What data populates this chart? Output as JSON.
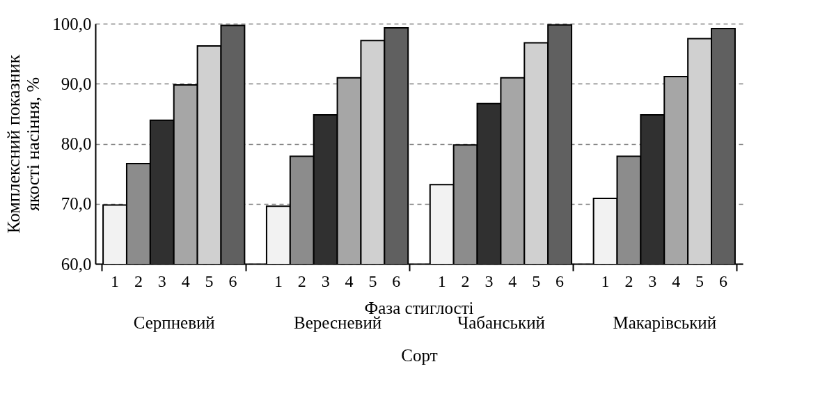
{
  "chart_data": {
    "type": "bar",
    "ylabel": "Комплексний показник якості насіння, %",
    "xlabel": "Сорт",
    "annotations": [
      "Фаза стиглості"
    ],
    "categories": [
      "Серпневий",
      "Вересневий",
      "Чабанський",
      "Макарівський"
    ],
    "series": [
      {
        "name": "1",
        "color": "#f2f2f2",
        "values": [
          69.8,
          69.6,
          73.2,
          70.9
        ]
      },
      {
        "name": "2",
        "color": "#8c8c8c",
        "values": [
          76.7,
          77.9,
          79.8,
          77.9
        ]
      },
      {
        "name": "3",
        "color": "#303030",
        "values": [
          83.9,
          84.8,
          86.7,
          84.8
        ]
      },
      {
        "name": "4",
        "color": "#a6a6a6",
        "values": [
          89.8,
          91.0,
          91.0,
          91.2
        ]
      },
      {
        "name": "5",
        "color": "#d0d0d0",
        "values": [
          96.3,
          97.2,
          96.8,
          97.5
        ]
      },
      {
        "name": "6",
        "color": "#606060",
        "values": [
          99.7,
          99.3,
          99.8,
          99.2
        ]
      }
    ],
    "ylim": [
      60,
      100
    ],
    "yticks": [
      {
        "value": 60,
        "label": "60,0"
      },
      {
        "value": 70,
        "label": "70,0"
      },
      {
        "value": 80,
        "label": "80,0"
      },
      {
        "value": 90,
        "label": "90,0"
      },
      {
        "value": 100,
        "label": "100,0"
      }
    ],
    "grid": "y",
    "legend": "bottom"
  }
}
